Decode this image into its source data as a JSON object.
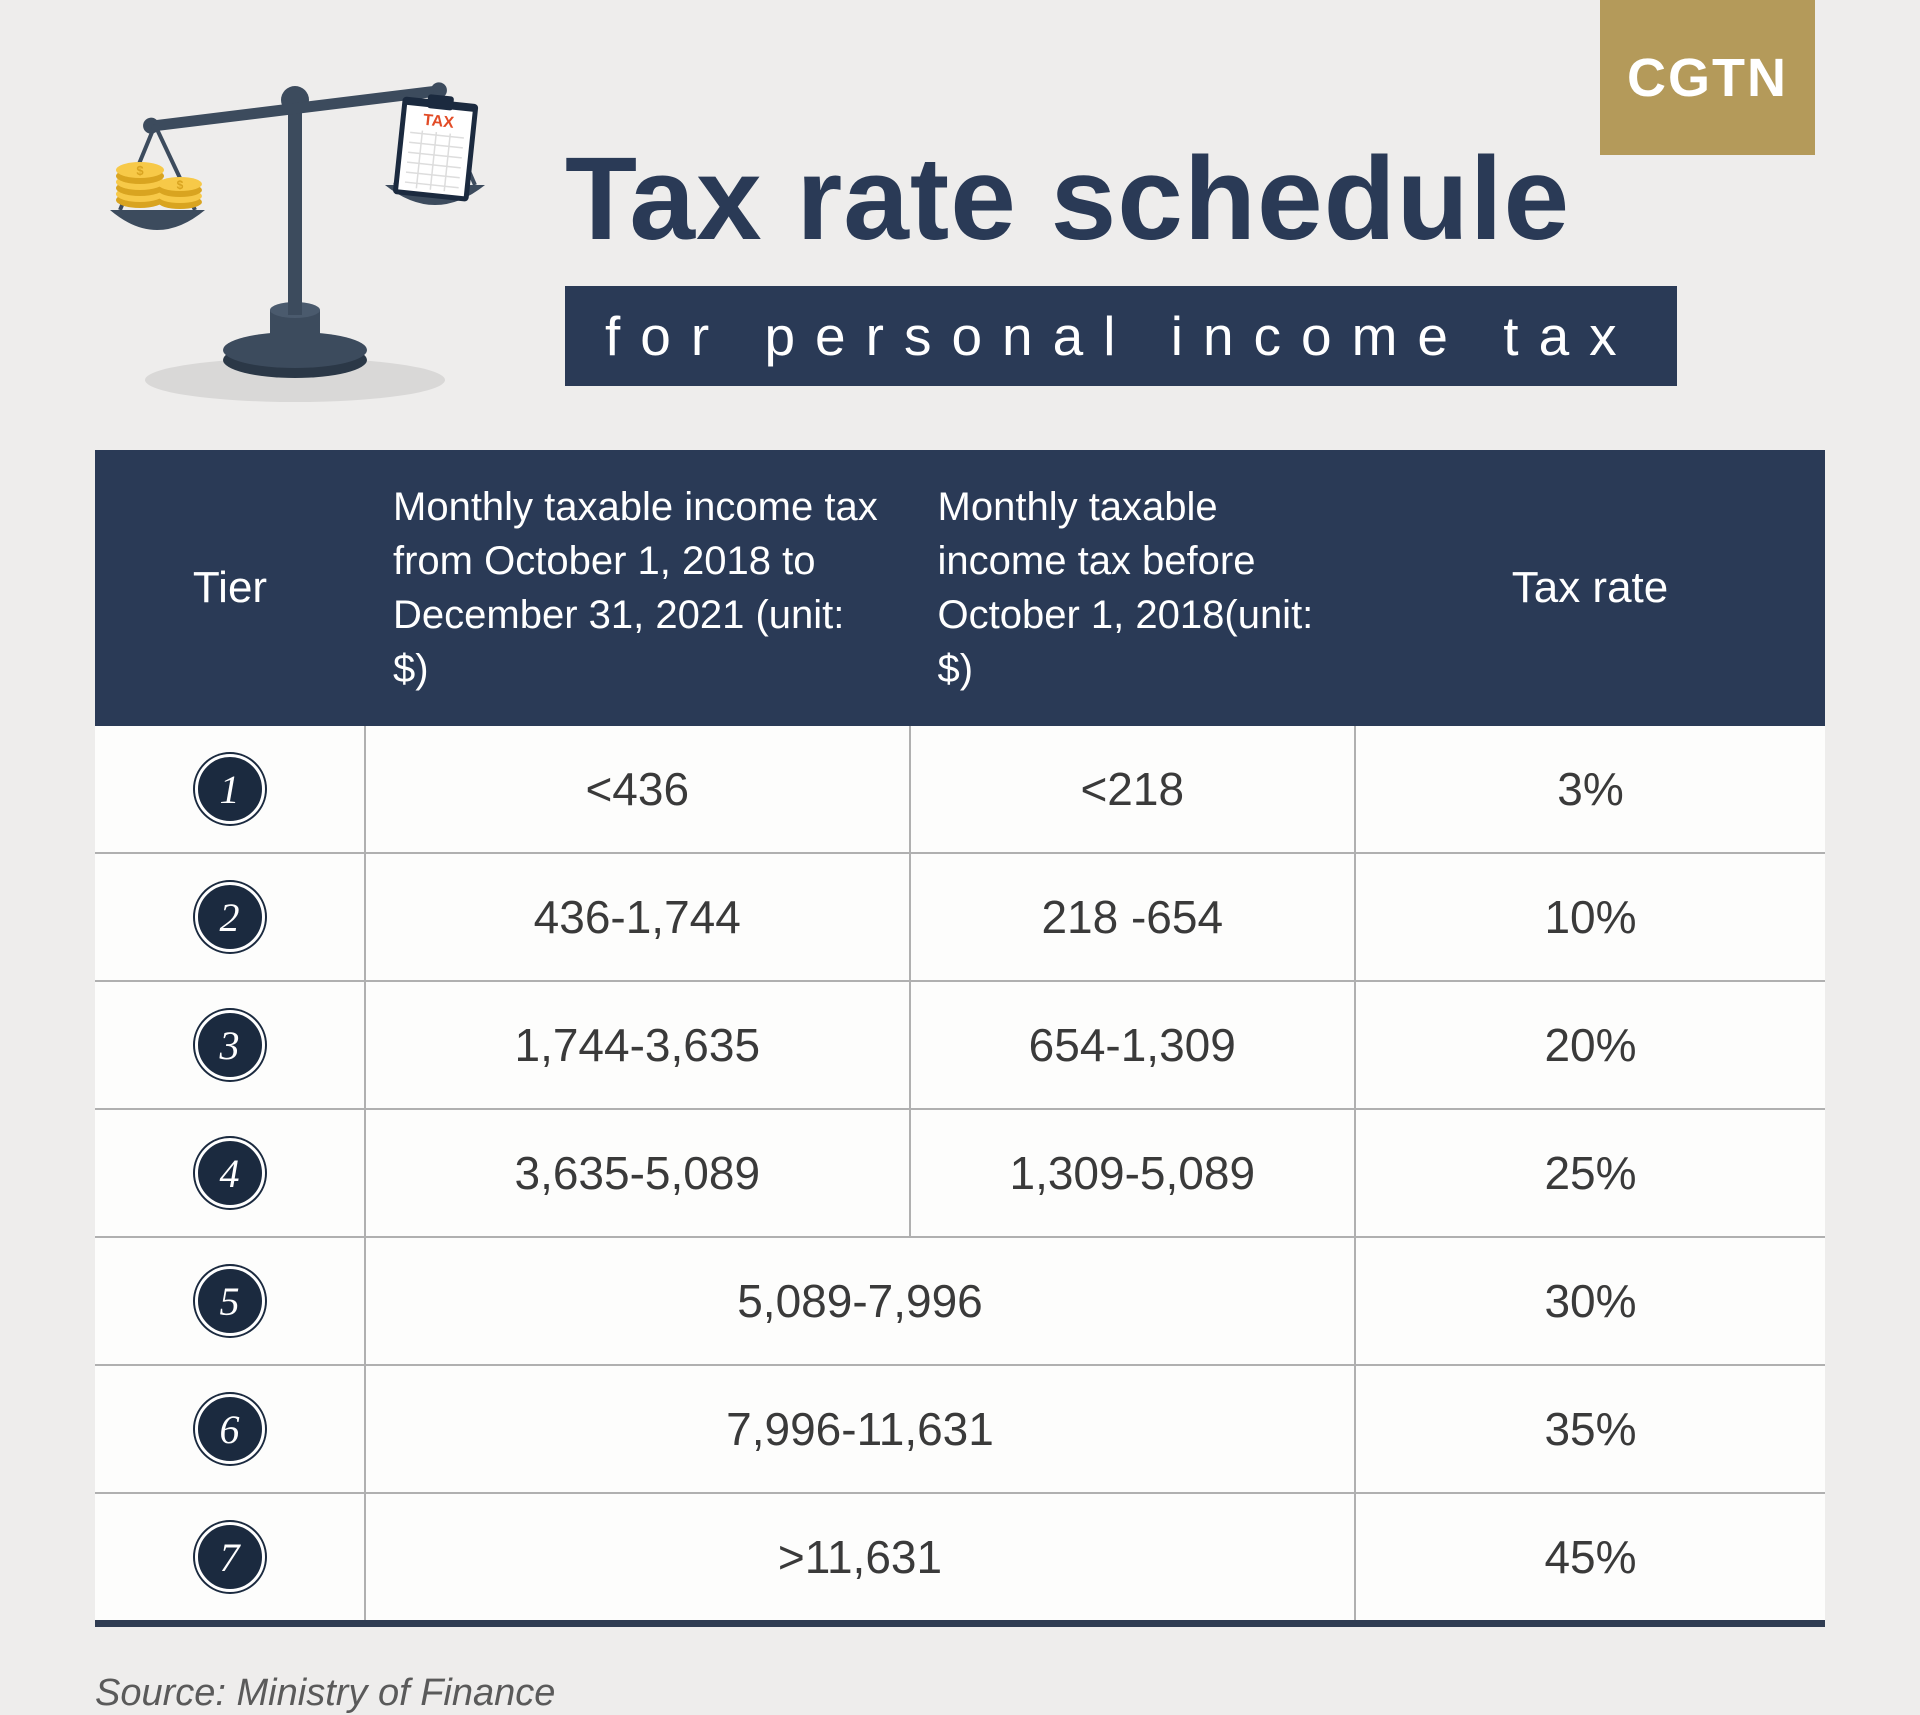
{
  "brand": {
    "label": "CGTN",
    "bg": "#b49a5a"
  },
  "title": {
    "main": "Tax rate schedule",
    "color": "#2a3a56"
  },
  "subtitle": {
    "text": "for personal income tax",
    "bg": "#2a3a56"
  },
  "table": {
    "header_bg": "#2a3a56",
    "columns": {
      "tier": "Tier",
      "income_new": "Monthly taxable income tax from October 1, 2018 to December 31, 2021 (unit: $)",
      "income_old": "Monthly taxable income tax before October 1, 2018(unit: $)",
      "rate": "Tax rate"
    },
    "rows": [
      {
        "tier": "1",
        "income_new": "<436",
        "income_old": "<218",
        "rate": "3%",
        "merged": false
      },
      {
        "tier": "2",
        "income_new": "436-1,744",
        "income_old": "218 -654",
        "rate": "10%",
        "merged": false
      },
      {
        "tier": "3",
        "income_new": "1,744-3,635",
        "income_old": "654-1,309",
        "rate": "20%",
        "merged": false
      },
      {
        "tier": "4",
        "income_new": "3,635-5,089",
        "income_old": "1,309-5,089",
        "rate": "25%",
        "merged": false
      },
      {
        "tier": "5",
        "income_merged": "5,089-7,996",
        "rate": "30%",
        "merged": true
      },
      {
        "tier": "6",
        "income_merged": "7,996-11,631",
        "rate": "35%",
        "merged": true
      },
      {
        "tier": "7",
        "income_merged": ">11,631",
        "rate": "45%",
        "merged": true
      }
    ],
    "tier_badge_bg": "#1b2a3f",
    "text_color": "#3a3a3a"
  },
  "source": "Source: Ministry of Finance",
  "illustration": {
    "scale_color": "#3c4b5d",
    "coin_color": "#f7c948",
    "coin_edge": "#d9a420",
    "paper_color": "#ffffff",
    "clip_color": "#1b2a3f",
    "tax_label": "TAX",
    "tax_label_color": "#e24b26",
    "shadow_color": "#d9d8d7"
  }
}
